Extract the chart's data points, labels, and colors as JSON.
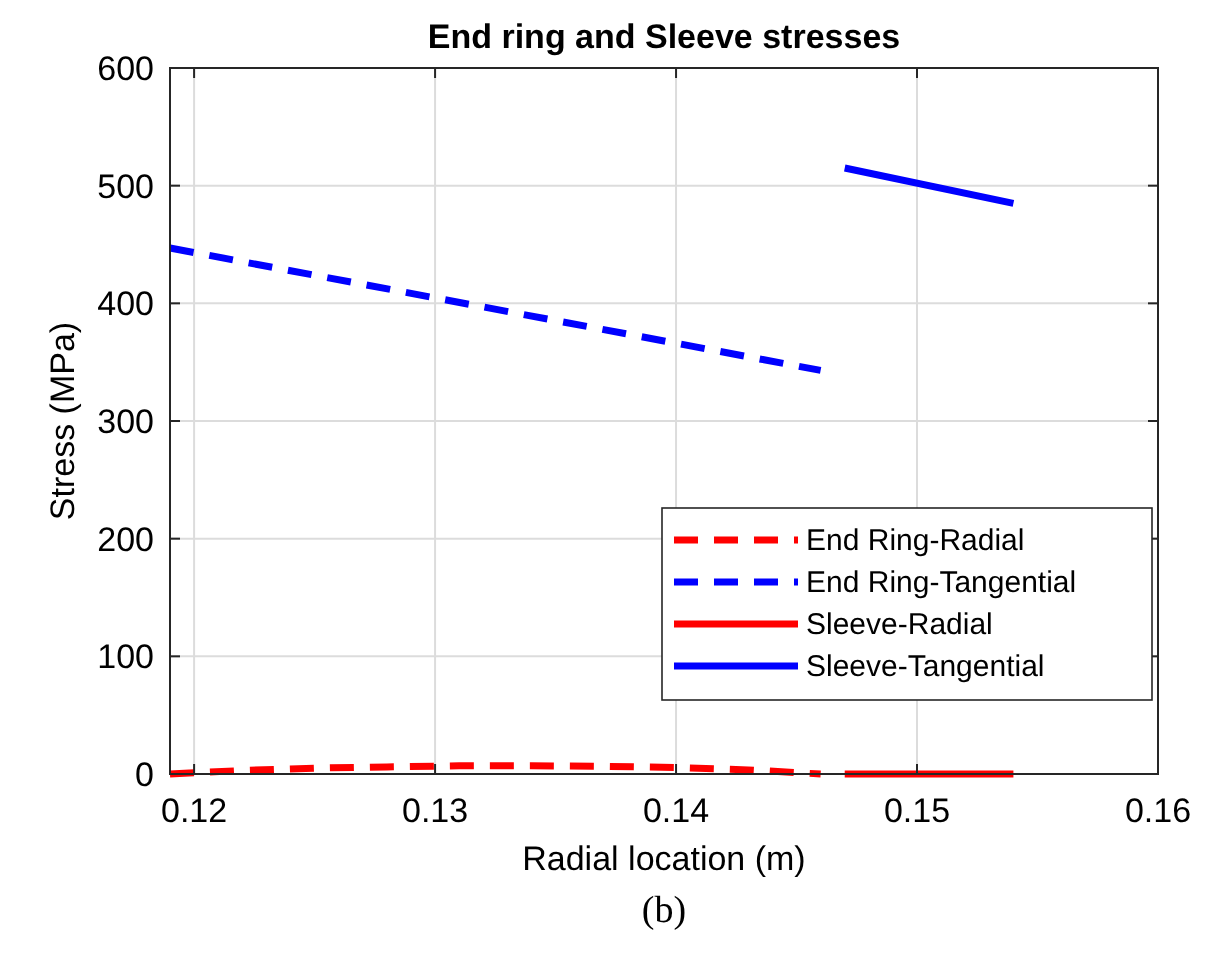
{
  "chart_data": {
    "type": "line",
    "title": "End ring and Sleeve stresses",
    "xlabel": "Radial location (m)",
    "ylabel": "Stress (MPa)",
    "annotations": [
      "(b)"
    ],
    "xlim": [
      0.119,
      0.16
    ],
    "xticks": [
      0.12,
      0.13,
      0.14,
      0.15,
      0.16
    ],
    "ylim": [
      0,
      600
    ],
    "yticks": [
      0,
      100,
      200,
      300,
      400,
      500,
      600
    ],
    "grid": true,
    "legend": "bottom right",
    "series": [
      {
        "name": "End Ring-Radial",
        "color": "#ff0000",
        "line_style": "dashed",
        "x": [
          0.119,
          0.122,
          0.125,
          0.128,
          0.131,
          0.134,
          0.137,
          0.14,
          0.143,
          0.146
        ],
        "values": [
          0,
          3,
          5,
          6,
          7,
          7,
          6.5,
          5.5,
          3.5,
          0
        ]
      },
      {
        "name": "End Ring-Tangential",
        "color": "#0000ff",
        "line_style": "dashed",
        "x": [
          0.119,
          0.146
        ],
        "values": [
          447,
          343
        ]
      },
      {
        "name": "Sleeve-Radial",
        "color": "#ff0000",
        "line_style": "solid",
        "x": [
          0.147,
          0.154
        ],
        "values": [
          0,
          0
        ]
      },
      {
        "name": "Sleeve-Tangential",
        "color": "#0000ff",
        "line_style": "solid",
        "x": [
          0.147,
          0.154
        ],
        "values": [
          515,
          485
        ]
      }
    ]
  }
}
